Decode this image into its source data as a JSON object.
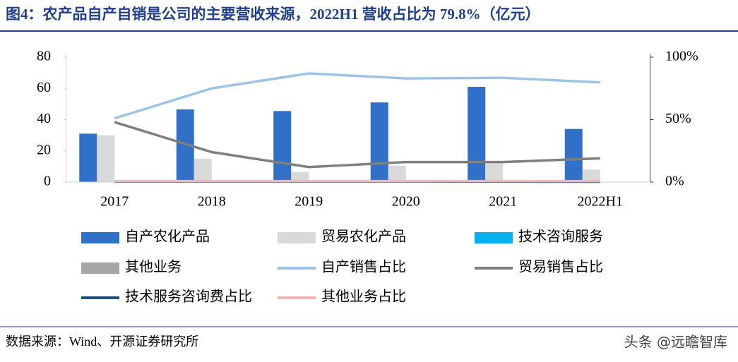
{
  "chart_data": {
    "type": "bar",
    "title": "图4：农产品自产自销是公司的主要营收来源，2022H1 营收占比为 79.8%（亿元）",
    "categories": [
      "2017",
      "2018",
      "2019",
      "2020",
      "2021",
      "2022H1"
    ],
    "series": [
      {
        "name": "自产农化产品",
        "type": "bar",
        "color": "#3070c8",
        "values": [
          31,
          46.5,
          45.5,
          51,
          61,
          34
        ]
      },
      {
        "name": "贸易农化产品",
        "type": "bar",
        "color": "#d9d9d9",
        "values": [
          30,
          15,
          6.5,
          10.5,
          12,
          8
        ]
      },
      {
        "name": "技术咨询服务",
        "type": "bar",
        "color": "#00b0f0",
        "values": [
          0.3,
          0.3,
          0.3,
          0.3,
          0.2,
          0.1
        ]
      },
      {
        "name": "其他业务",
        "type": "bar",
        "color": "#a6a6a6",
        "values": [
          0.2,
          0.2,
          0.2,
          0.2,
          0.2,
          0.2
        ]
      },
      {
        "name": "自产销售占比",
        "type": "line",
        "axis": "y2",
        "color": "#9dc3e6",
        "values": [
          51,
          75,
          87,
          83,
          83.5,
          79.8
        ]
      },
      {
        "name": "贸易销售占比",
        "type": "line",
        "axis": "y2",
        "color": "#7f7f7f",
        "values": [
          48,
          24,
          12,
          16,
          16,
          19
        ]
      },
      {
        "name": "技术服务咨询费占比",
        "type": "line",
        "axis": "y2",
        "color": "#1f4e79",
        "values": [
          0.5,
          0.5,
          0.5,
          0.5,
          0.4,
          0.3
        ]
      },
      {
        "name": "其他业务占比",
        "type": "line",
        "axis": "y2",
        "color": "#f4b6b0",
        "values": [
          0.8,
          0.8,
          0.8,
          0.8,
          0.8,
          0.8
        ]
      }
    ],
    "ylim": [
      0,
      80
    ],
    "yticks": [
      0,
      20,
      40,
      60,
      80
    ],
    "y2lim": [
      0,
      100
    ],
    "y2ticks": [
      {
        "value": 0,
        "label": "0%"
      },
      {
        "value": 50,
        "label": "50%"
      },
      {
        "value": 100,
        "label": "100%"
      }
    ],
    "grid": false
  },
  "source": "数据来源：Wind、开源证券研究所",
  "watermark": "头条 @远瞻智库"
}
